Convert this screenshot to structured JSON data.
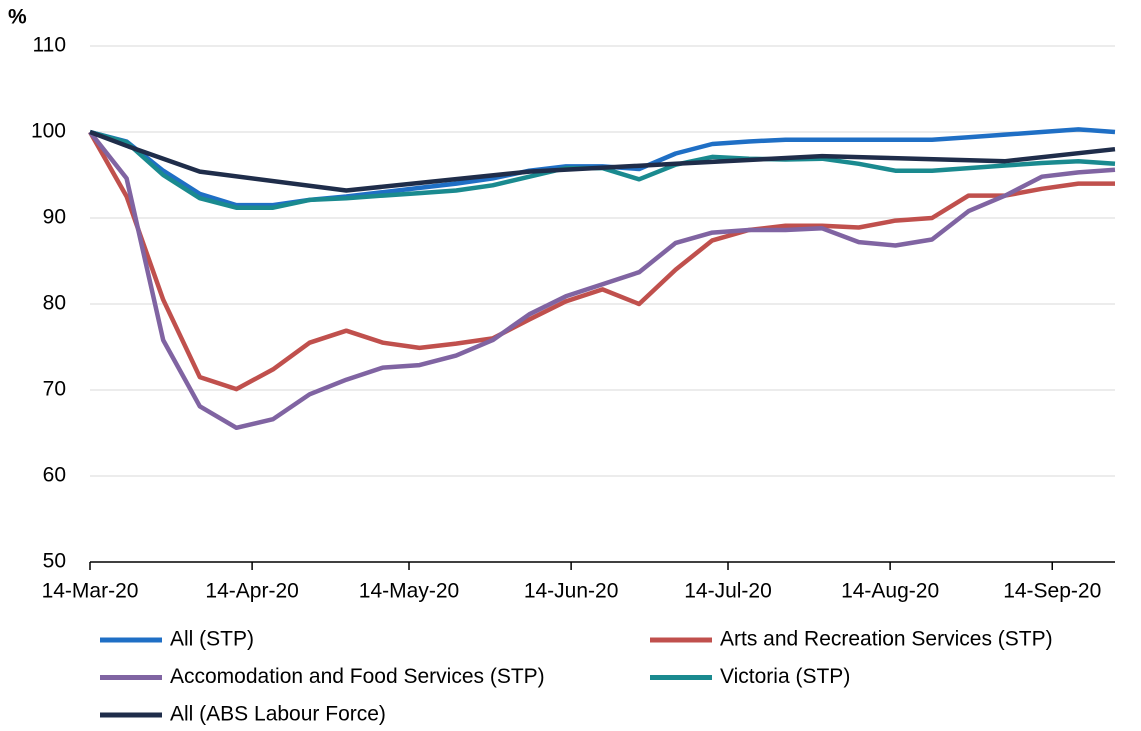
{
  "chart_data": {
    "type": "line",
    "y_label": "%",
    "x": [
      "2020-03-14",
      "2020-03-21",
      "2020-03-28",
      "2020-04-04",
      "2020-04-11",
      "2020-04-18",
      "2020-04-25",
      "2020-05-02",
      "2020-05-09",
      "2020-05-16",
      "2020-05-23",
      "2020-05-30",
      "2020-06-06",
      "2020-06-13",
      "2020-06-20",
      "2020-06-27",
      "2020-07-04",
      "2020-07-11",
      "2020-07-18",
      "2020-07-25",
      "2020-08-01",
      "2020-08-08",
      "2020-08-15",
      "2020-08-22",
      "2020-08-29",
      "2020-09-05",
      "2020-09-12",
      "2020-09-19",
      "2020-09-26"
    ],
    "series": [
      {
        "name": "All (STP)",
        "color": "#1f6fc5",
        "values": [
          100,
          98.9,
          95.5,
          92.8,
          91.5,
          91.5,
          92.1,
          92.5,
          93,
          93.5,
          94,
          94.6,
          95.5,
          96,
          96,
          95.7,
          97.5,
          98.6,
          98.9,
          99.1,
          99.1,
          99.1,
          99.1,
          99.1,
          99.4,
          99.7,
          100,
          100.3,
          100
        ]
      },
      {
        "name": "Arts and Recreation Services (STP)",
        "color": "#c0504d",
        "values": [
          100,
          92.5,
          80.5,
          71.5,
          70.1,
          72.4,
          75.5,
          76.9,
          75.5,
          74.9,
          75.4,
          76.0,
          78.2,
          80.3,
          81.7,
          80.0,
          84.0,
          87.4,
          88.6,
          89.1,
          89.1,
          88.9,
          89.7,
          90.0,
          92.6,
          92.6,
          93.4,
          94.0,
          94.0
        ]
      },
      {
        "name": "Accomodation and Food Services (STP)",
        "color": "#8064a2",
        "values": [
          100,
          94.6,
          75.8,
          68.1,
          65.6,
          66.6,
          69.5,
          71.2,
          72.6,
          72.9,
          74.0,
          75.8,
          78.8,
          80.9,
          82.3,
          83.7,
          87.1,
          88.3,
          88.6,
          88.6,
          88.8,
          87.2,
          86.8,
          87.5,
          90.8,
          92.6,
          94.8,
          95.3,
          95.6
        ]
      },
      {
        "name": "Victoria (STP)",
        "color": "#1a8a8f",
        "values": [
          100,
          98.8,
          95.0,
          92.3,
          91.2,
          91.2,
          92.1,
          92.3,
          92.6,
          92.9,
          93.2,
          93.8,
          94.8,
          95.8,
          95.8,
          94.5,
          96.2,
          97.1,
          96.9,
          96.8,
          96.9,
          96.3,
          95.5,
          95.5,
          95.8,
          96.1,
          96.4,
          96.6,
          96.3
        ]
      },
      {
        "name": "All (ABS Labour Force)",
        "color": "#1f2d4a",
        "x": [
          "2020-03-14",
          "2020-03-21",
          "2020-04-04",
          "2020-05-02",
          "2020-06-06",
          "2020-07-04",
          "2020-08-01",
          "2020-09-05",
          "2020-09-26"
        ],
        "values": [
          100,
          98.4,
          95.4,
          93.2,
          95.4,
          96.3,
          97.2,
          96.6,
          98.0
        ]
      }
    ],
    "xlim": [
      "2020-03-14",
      "2020-09-26"
    ],
    "xticks": [
      {
        "value": "2020-03-14",
        "label": "14-Mar-20"
      },
      {
        "value": "2020-04-14",
        "label": "14-Apr-20"
      },
      {
        "value": "2020-05-14",
        "label": "14-May-20"
      },
      {
        "value": "2020-06-14",
        "label": "14-Jun-20"
      },
      {
        "value": "2020-07-14",
        "label": "14-Jul-20"
      },
      {
        "value": "2020-08-14",
        "label": "14-Aug-20"
      },
      {
        "value": "2020-09-14",
        "label": "14-Sep-20"
      }
    ],
    "ylim": [
      50,
      110
    ],
    "yticks": [
      50,
      60,
      70,
      80,
      90,
      100,
      110
    ],
    "grid": true
  }
}
